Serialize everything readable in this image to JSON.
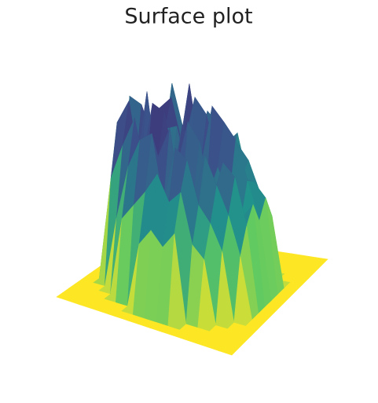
{
  "chart_data": {
    "type": "surface",
    "title": "Surface plot",
    "colorscale": [
      "#fde725",
      "#5ec962",
      "#21918c",
      "#3b528b",
      "#440154"
    ],
    "z": [
      [
        0,
        0,
        0,
        0,
        0,
        0,
        0,
        0,
        0,
        0,
        0,
        0,
        0,
        0,
        0,
        0
      ],
      [
        0,
        0,
        0,
        0,
        0,
        0,
        0,
        0,
        0,
        0,
        0,
        0,
        0,
        0,
        0,
        0
      ],
      [
        0,
        0,
        0,
        0,
        0,
        0.55,
        0.82,
        0.4,
        0.91,
        0.63,
        0.47,
        0,
        0,
        0,
        0,
        0
      ],
      [
        0,
        0,
        0,
        0,
        0.38,
        0.74,
        0.95,
        0.52,
        0.88,
        0.61,
        0.79,
        0.44,
        0,
        0,
        0,
        0
      ],
      [
        0,
        0,
        0,
        0.42,
        0.67,
        0.9,
        0.58,
        0.99,
        0.71,
        0.85,
        0.49,
        0.93,
        0.36,
        0,
        0,
        0
      ],
      [
        0,
        0,
        0,
        0.51,
        0.83,
        0.62,
        0.97,
        0.45,
        0.78,
        0.92,
        0.56,
        0.69,
        0.4,
        0,
        0,
        0
      ],
      [
        0,
        0,
        0.35,
        0.6,
        0.88,
        0.73,
        0.94,
        0.5,
        0.81,
        0.66,
        0.98,
        0.57,
        0.77,
        0.39,
        0,
        0
      ],
      [
        0,
        0,
        0.44,
        0.71,
        0.53,
        0.9,
        0.64,
        0.86,
        0.47,
        0.95,
        0.59,
        0.82,
        0.68,
        0.33,
        0,
        0
      ],
      [
        0,
        0,
        0.37,
        0.58,
        0.84,
        0.49,
        0.92,
        0.7,
        0.61,
        0.87,
        0.54,
        0.76,
        0.63,
        0.41,
        0,
        0
      ],
      [
        0,
        0,
        0.46,
        0.65,
        0.79,
        0.55,
        0.83,
        0.48,
        0.96,
        0.62,
        0.74,
        0.51,
        0.7,
        0.34,
        0,
        0
      ],
      [
        0,
        0,
        0,
        0.39,
        0.57,
        0.8,
        0.52,
        0.68,
        0.89,
        0.45,
        0.72,
        0.6,
        0.43,
        0,
        0,
        0
      ],
      [
        0,
        0,
        0,
        0.33,
        0.49,
        0.66,
        0.75,
        0.54,
        0.81,
        0.58,
        0.64,
        0.47,
        0.38,
        0,
        0,
        0
      ],
      [
        0,
        0,
        0,
        0,
        0.36,
        0.52,
        0.69,
        0.44,
        0.61,
        0.57,
        0.48,
        0.35,
        0,
        0,
        0,
        0
      ],
      [
        0,
        0,
        0,
        0,
        0,
        0.32,
        0.45,
        0.53,
        0.41,
        0.5,
        0.37,
        0,
        0,
        0,
        0,
        0
      ],
      [
        0,
        0,
        0,
        0,
        0,
        0,
        0,
        0,
        0,
        0,
        0,
        0,
        0,
        0,
        0,
        0
      ],
      [
        0,
        0,
        0,
        0,
        0,
        0,
        0,
        0,
        0,
        0,
        0,
        0,
        0,
        0,
        0,
        0
      ]
    ]
  }
}
